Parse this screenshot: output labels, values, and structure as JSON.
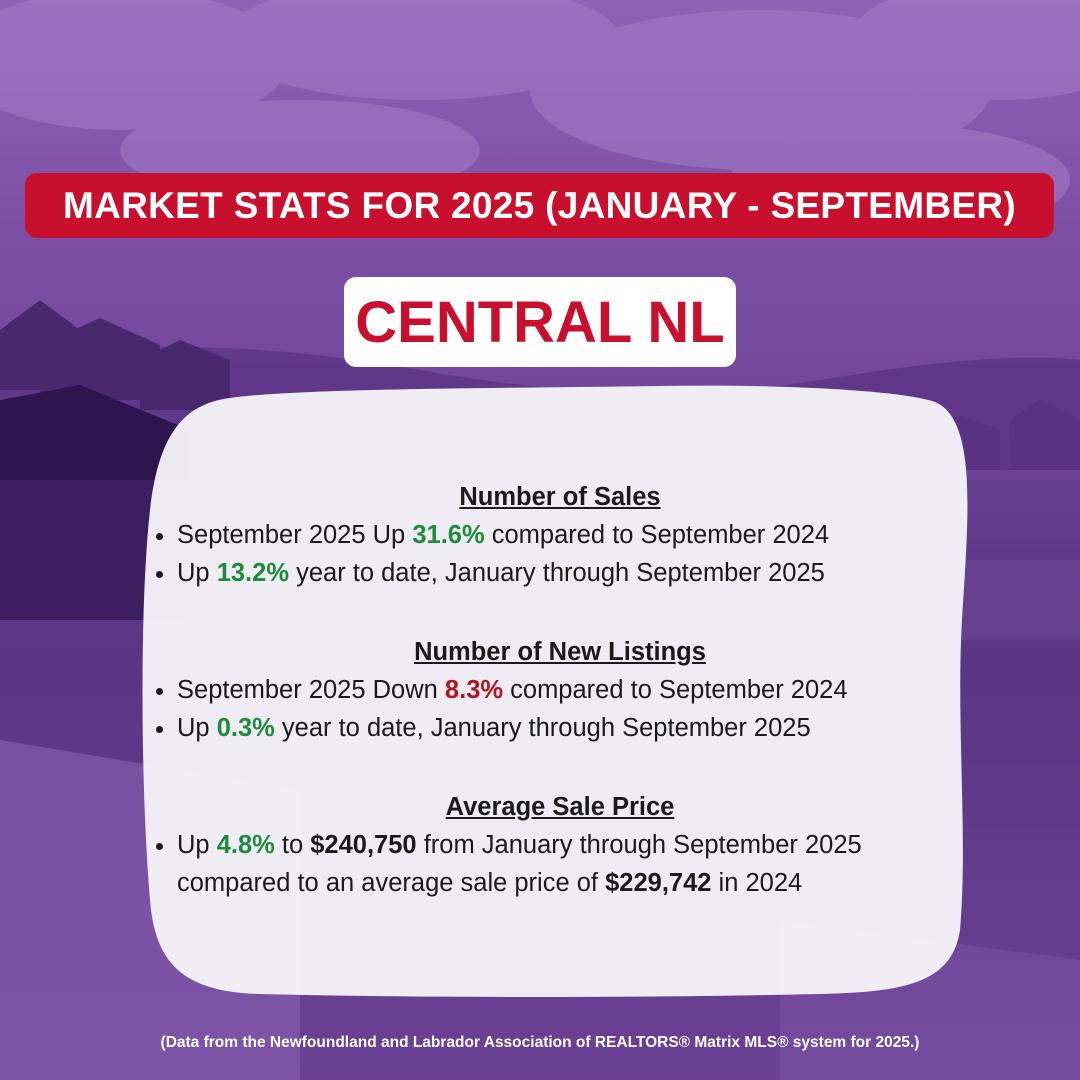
{
  "header": {
    "title": "MARKET STATS FOR 2025 (JANUARY - SEPTEMBER)",
    "region": "CENTRAL NL"
  },
  "sections": [
    {
      "heading": "Number of Sales",
      "items": [
        [
          {
            "text": "September 2025 Up ",
            "style": "normal"
          },
          {
            "text": "31.6%",
            "style": "green"
          },
          {
            "text": " compared to September 2024",
            "style": "normal"
          }
        ],
        [
          {
            "text": "Up ",
            "style": "normal"
          },
          {
            "text": "13.2%",
            "style": "green"
          },
          {
            "text": " year to date, January through September 2025",
            "style": "normal"
          }
        ]
      ]
    },
    {
      "heading": "Number of New Listings",
      "items": [
        [
          {
            "text": "September 2025 Down ",
            "style": "normal"
          },
          {
            "text": "8.3%",
            "style": "red"
          },
          {
            "text": " compared to September 2024",
            "style": "normal"
          }
        ],
        [
          {
            "text": "Up ",
            "style": "normal"
          },
          {
            "text": "0.3%",
            "style": "green"
          },
          {
            "text": " year to date, January through September 2025",
            "style": "normal"
          }
        ]
      ]
    },
    {
      "heading": "Average Sale Price",
      "items": [
        [
          {
            "text": "Up ",
            "style": "normal"
          },
          {
            "text": "4.8%",
            "style": "green"
          },
          {
            "text": " to ",
            "style": "normal"
          },
          {
            "text": "$240,750",
            "style": "bold"
          },
          {
            "text": " from January through September 2025 compared to an average sale price of ",
            "style": "normal"
          },
          {
            "text": "$229,742",
            "style": "bold"
          },
          {
            "text": " in 2024",
            "style": "normal"
          }
        ]
      ]
    }
  ],
  "footnote": "(Data from the Newfoundland and Labrador Association of REALTORS® Matrix MLS® system for 2025.)",
  "colors": {
    "accent_red": "#c8102e",
    "positive_green": "#1e8a3c",
    "negative_red": "#b3121f",
    "background_purple": "#6d4196"
  }
}
